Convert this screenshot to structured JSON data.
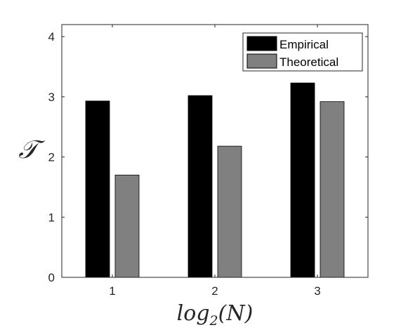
{
  "chart_data": {
    "type": "bar",
    "categories": [
      "1",
      "2",
      "3"
    ],
    "series": [
      {
        "name": "Empirical",
        "values": [
          2.93,
          3.02,
          3.23
        ],
        "color": "#000000"
      },
      {
        "name": "Theoretical",
        "values": [
          1.7,
          2.18,
          2.92
        ],
        "color": "#808080"
      }
    ],
    "xlabel": "log2(N)",
    "xlabel_parts": {
      "base": "log",
      "sub": "2",
      "rest": "(N)"
    },
    "ylabel": "𝒯",
    "ylim": [
      0,
      4.2
    ],
    "yticks": [
      0,
      1,
      2,
      3,
      4
    ],
    "grid": false,
    "legend_position": "top-right"
  }
}
